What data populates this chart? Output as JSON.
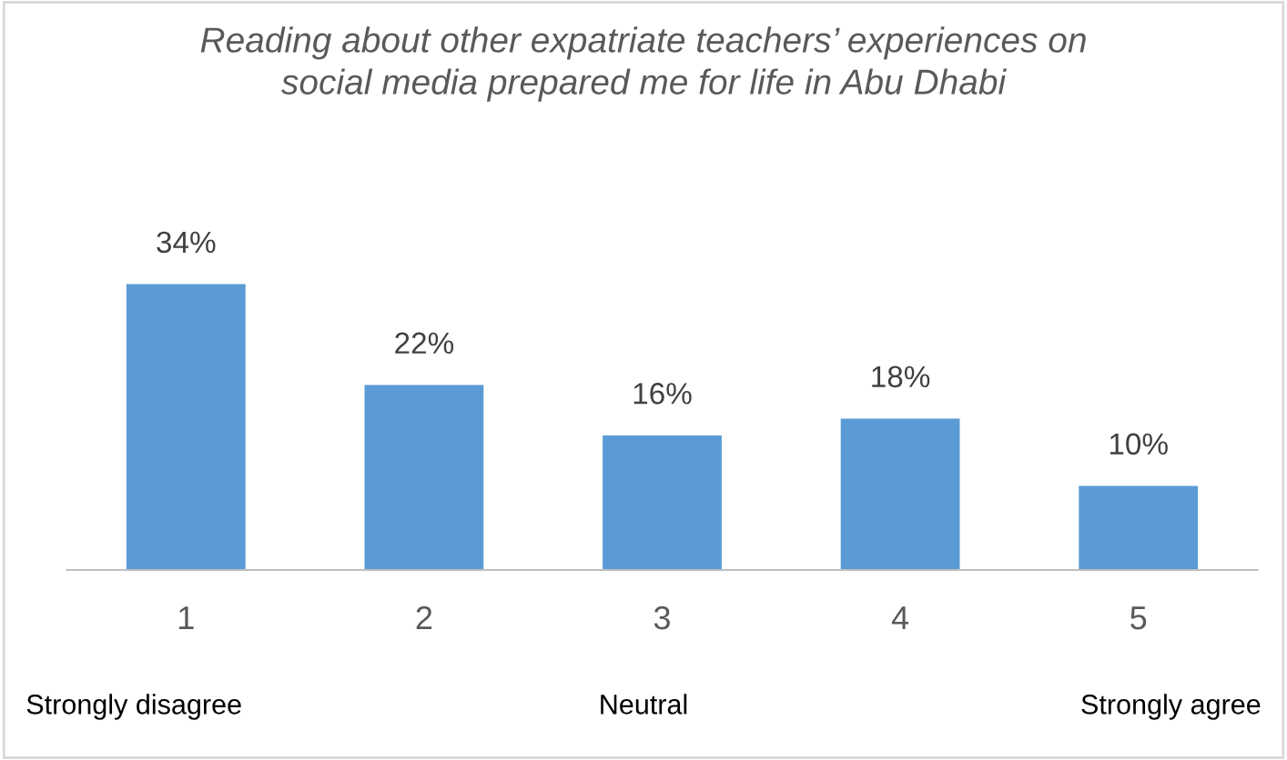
{
  "chart_data": {
    "type": "bar",
    "title": "Reading about other expatriate teachers’ experiences on social media prepared me for life in Abu Dhabi",
    "categories": [
      "1",
      "2",
      "3",
      "4",
      "5"
    ],
    "values": [
      34,
      22,
      16,
      18,
      10
    ],
    "value_labels": [
      "34%",
      "22%",
      "16%",
      "18%",
      "10%"
    ],
    "color": "#5b9bd5",
    "grid": false,
    "tick_labels": "x",
    "annotations": [
      "Strongly disagree",
      "Neutral",
      "Strongly agree"
    ]
  }
}
